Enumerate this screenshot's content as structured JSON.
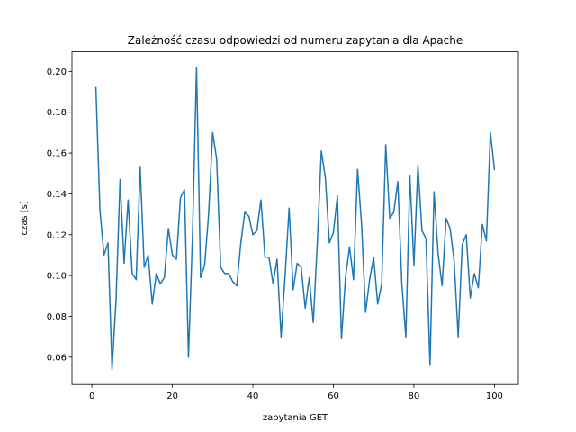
{
  "chart_data": {
    "type": "line",
    "title": "Zależność czasu odpowiedzi od numeru zapytania dla Apache",
    "xlabel": "zapytania GET",
    "ylabel": "czas [s]",
    "xlim": [
      -4.95,
      105.95
    ],
    "ylim": [
      0.0466,
      0.2096
    ],
    "xticks": [
      0,
      20,
      40,
      60,
      80,
      100
    ],
    "xtick_labels": [
      "0",
      "20",
      "40",
      "60",
      "80",
      "100"
    ],
    "yticks": [
      0.06,
      0.08,
      0.1,
      0.12,
      0.14,
      0.16,
      0.18,
      0.2
    ],
    "ytick_labels": [
      "0.06",
      "0.08",
      "0.10",
      "0.12",
      "0.14",
      "0.16",
      "0.18",
      "0.20"
    ],
    "grid": false,
    "series": [
      {
        "color": "#1f77b4",
        "x": [
          1,
          2,
          3,
          4,
          5,
          6,
          7,
          8,
          9,
          10,
          11,
          12,
          13,
          14,
          15,
          16,
          17,
          18,
          19,
          20,
          21,
          22,
          23,
          24,
          25,
          26,
          27,
          28,
          29,
          30,
          31,
          32,
          33,
          34,
          35,
          36,
          37,
          38,
          39,
          40,
          41,
          42,
          43,
          44,
          45,
          46,
          47,
          48,
          49,
          50,
          51,
          52,
          53,
          54,
          55,
          56,
          57,
          58,
          59,
          60,
          61,
          62,
          63,
          64,
          65,
          66,
          67,
          68,
          69,
          70,
          71,
          72,
          73,
          74,
          75,
          76,
          77,
          78,
          79,
          80,
          81,
          82,
          83,
          84,
          85,
          86,
          87,
          88,
          89,
          90,
          91,
          92,
          93,
          94,
          95,
          96,
          97,
          98,
          99,
          100
        ],
        "y": [
          0.192,
          0.132,
          0.11,
          0.116,
          0.054,
          0.088,
          0.147,
          0.106,
          0.137,
          0.101,
          0.098,
          0.153,
          0.104,
          0.11,
          0.086,
          0.101,
          0.096,
          0.099,
          0.123,
          0.11,
          0.108,
          0.138,
          0.142,
          0.06,
          0.12,
          0.202,
          0.099,
          0.105,
          0.13,
          0.17,
          0.157,
          0.104,
          0.101,
          0.101,
          0.097,
          0.095,
          0.116,
          0.131,
          0.129,
          0.12,
          0.122,
          0.137,
          0.109,
          0.109,
          0.096,
          0.108,
          0.07,
          0.1,
          0.133,
          0.093,
          0.106,
          0.104,
          0.084,
          0.099,
          0.077,
          0.116,
          0.161,
          0.148,
          0.116,
          0.121,
          0.139,
          0.069,
          0.099,
          0.114,
          0.098,
          0.152,
          0.125,
          0.082,
          0.098,
          0.109,
          0.086,
          0.096,
          0.164,
          0.128,
          0.131,
          0.146,
          0.096,
          0.07,
          0.149,
          0.105,
          0.154,
          0.122,
          0.118,
          0.056,
          0.141,
          0.111,
          0.095,
          0.128,
          0.123,
          0.107,
          0.07,
          0.115,
          0.12,
          0.089,
          0.101,
          0.094,
          0.125,
          0.117,
          0.17,
          0.152
        ]
      }
    ]
  }
}
